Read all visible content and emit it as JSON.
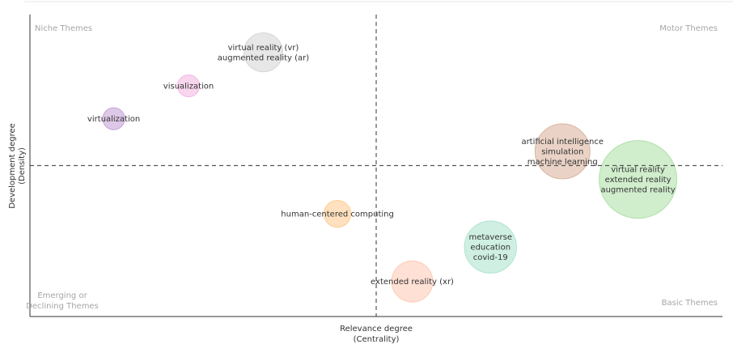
{
  "chart_data": {
    "type": "scatter",
    "subtype": "bubble",
    "title": "",
    "xlabel": "Relevance degree",
    "xlabel_sub": "(Centrality)",
    "ylabel": "Development degree",
    "ylabel_sub": "(Density)",
    "xlim": [
      0,
      1
    ],
    "ylim": [
      0,
      1
    ],
    "x_divider": 0.5,
    "y_divider": 0.5,
    "grid": false,
    "legend": "none",
    "quadrants": [
      {
        "name": "Niche Themes",
        "position": "top-left"
      },
      {
        "name": "Motor Themes",
        "position": "top-right"
      },
      {
        "name": "Emerging or Declining Themes",
        "lines": [
          "Emerging or",
          "Declining Themes"
        ],
        "position": "bottom-left"
      },
      {
        "name": "Basic Themes",
        "position": "bottom-right"
      }
    ],
    "clusters": [
      {
        "labels": [
          "virtual reality (vr)",
          "augmented reality (ar)"
        ],
        "x": 0.337,
        "y": 0.875,
        "size": 0.25,
        "color": "#d3d3d3"
      },
      {
        "labels": [
          "visualization"
        ],
        "x": 0.229,
        "y": 0.764,
        "size": 0.08,
        "color": "#f2b5e0"
      },
      {
        "labels": [
          "virtualization"
        ],
        "x": 0.121,
        "y": 0.655,
        "size": 0.08,
        "color": "#c39bd6"
      },
      {
        "labels": [
          "artificial intelligence",
          "simulation",
          "machine learning"
        ],
        "x": 0.769,
        "y": 0.547,
        "size": 0.5,
        "color": "#d8ae98"
      },
      {
        "labels": [
          "virtual reality",
          "extended reality",
          "augmented reality"
        ],
        "x": 0.878,
        "y": 0.454,
        "size": 1.0,
        "color": "#a9dfa3"
      },
      {
        "labels": [
          "human-centered computing"
        ],
        "x": 0.444,
        "y": 0.34,
        "size": 0.12,
        "color": "#ffc98a"
      },
      {
        "labels": [
          "metaverse",
          "education",
          "covid-19"
        ],
        "x": 0.665,
        "y": 0.23,
        "size": 0.45,
        "color": "#a8e2cc"
      },
      {
        "labels": [
          "extended reality (xr)"
        ],
        "x": 0.552,
        "y": 0.116,
        "size": 0.28,
        "color": "#ffc7b0"
      }
    ]
  }
}
